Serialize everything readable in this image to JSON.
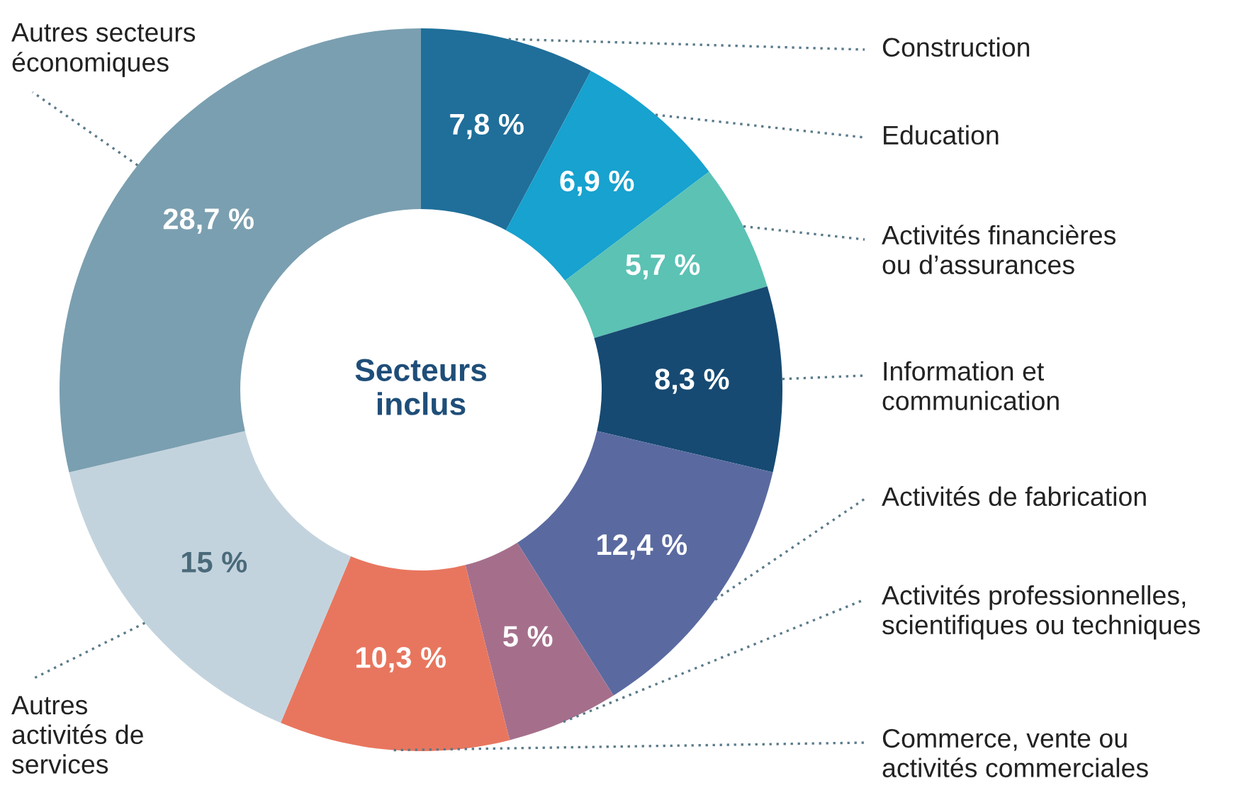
{
  "chart_data": {
    "type": "donut",
    "title": "Secteurs inclus",
    "categories": [
      "Construction",
      "Education",
      "Activités financières\nou d’assurances",
      "Information et\ncommunication",
      "Activités de fabrication",
      "Activités professionnelles,\nscientifiques ou techniques",
      "Commerce, vente ou\nactivités commerciales",
      "Autres\nactivités de\nservices",
      "Autres secteurs\néconomiques"
    ],
    "values": [
      7.8,
      6.9,
      5.7,
      8.3,
      12.4,
      5,
      10.3,
      15,
      28.7
    ],
    "colors": [
      "#1f6f9a",
      "#17a2cf",
      "#5bc2b4",
      "#164a72",
      "#5a6aa0",
      "#a56f8c",
      "#e8765e",
      "#c3d3dd",
      "#7a9fb0"
    ],
    "value_labels": [
      "7,8 %",
      "6,9 %",
      "5,7 %",
      "8,3 %",
      "12,4 %",
      "5 %",
      "10,3 %",
      "15 %",
      "28,7 %"
    ]
  }
}
